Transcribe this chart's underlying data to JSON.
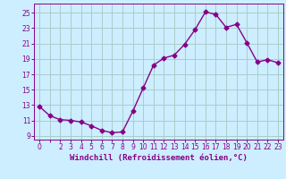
{
  "x": [
    0,
    1,
    2,
    3,
    4,
    5,
    6,
    7,
    8,
    9,
    10,
    11,
    12,
    13,
    14,
    15,
    16,
    17,
    18,
    19,
    20,
    21,
    22,
    23
  ],
  "y": [
    12.8,
    11.6,
    11.1,
    11.0,
    10.8,
    10.3,
    9.7,
    9.4,
    9.5,
    12.2,
    15.2,
    18.2,
    19.1,
    19.5,
    20.9,
    22.8,
    25.1,
    24.8,
    23.1,
    23.5,
    21.1,
    18.6,
    18.9,
    18.5
  ],
  "line_color": "#880088",
  "marker": "D",
  "markersize": 2.5,
  "linewidth": 1.0,
  "bg_color": "#cceeff",
  "grid_color": "#aacccc",
  "xlabel": "Windchill (Refroidissement éolien,°C)",
  "xlabel_color": "#880088",
  "xlabel_fontsize": 6.5,
  "yticks": [
    9,
    11,
    13,
    15,
    17,
    19,
    21,
    23,
    25
  ],
  "ylim": [
    8.5,
    26.2
  ],
  "xlim": [
    -0.5,
    23.5
  ],
  "xtick_labels": [
    "0",
    "",
    "2",
    "3",
    "4",
    "5",
    "6",
    "7",
    "8",
    "9",
    "10",
    "11",
    "12",
    "13",
    "14",
    "15",
    "16",
    "17",
    "18",
    "19",
    "20",
    "21",
    "22",
    "23"
  ],
  "tick_fontsize": 5.5,
  "tick_color": "#880088",
  "spine_color": "#880088"
}
